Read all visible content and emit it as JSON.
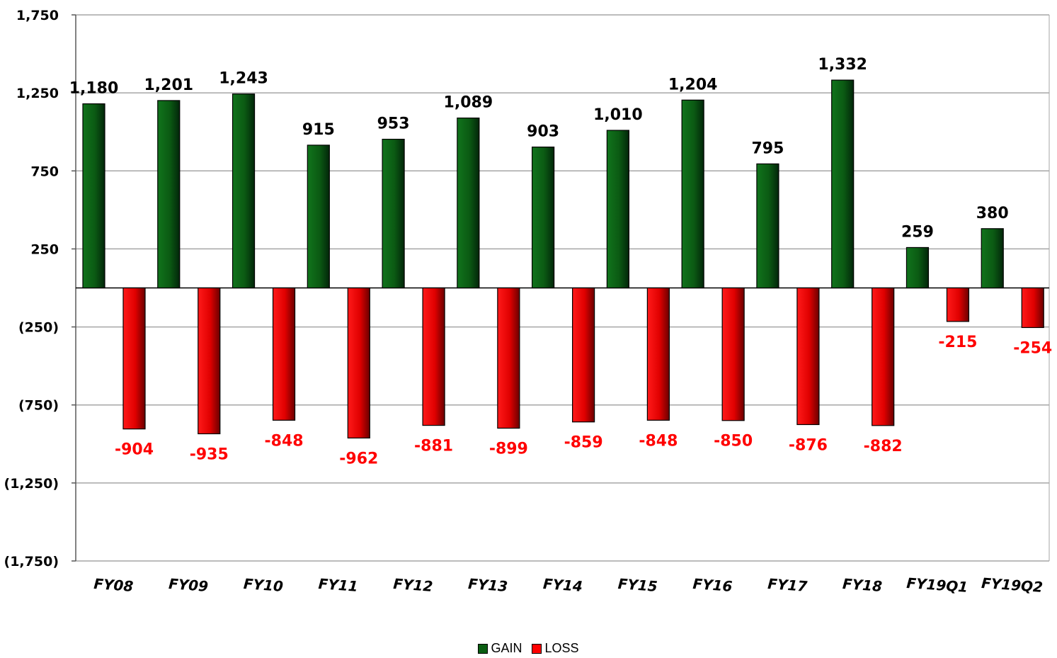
{
  "chart_data": {
    "type": "bar",
    "title": "",
    "xlabel": "",
    "ylabel": "",
    "categories": [
      "FY08",
      "FY09",
      "FY10",
      "FY11",
      "FY12",
      "FY13",
      "FY14",
      "FY15",
      "FY16",
      "FY17",
      "FY18",
      "FY19Q1",
      "FY19Q2"
    ],
    "series": [
      {
        "name": "GAIN",
        "color": "#0b5e12",
        "values": [
          1180,
          1201,
          1243,
          915,
          953,
          1089,
          903,
          1010,
          1204,
          795,
          1332,
          259,
          380
        ]
      },
      {
        "name": "LOSS",
        "color": "#ff0000",
        "values": [
          -904,
          -935,
          -848,
          -962,
          -881,
          -899,
          -859,
          -848,
          -850,
          -876,
          -882,
          -215,
          -254
        ]
      }
    ],
    "data_labels_pos": [
      "1,180",
      "1,201",
      "1,243",
      "915",
      "953",
      "1,089",
      "903",
      "1,010",
      "1,204",
      "795",
      "1,332",
      "259",
      "380"
    ],
    "data_labels_neg": [
      "-904",
      "-935",
      "-848",
      "-962",
      "-881",
      "-899",
      "-859",
      "-848",
      "-850",
      "-876",
      "-882",
      "-215",
      "-254"
    ],
    "yticks": [
      1750,
      1250,
      750,
      250,
      -250,
      -750,
      -1250,
      -1750
    ],
    "ytick_labels": [
      "1,750",
      "1,250",
      "750",
      "250",
      "(250)",
      "(750)",
      "(1,250)",
      "(1,750)"
    ],
    "ylim": [
      -1750,
      1750
    ],
    "grid": true,
    "legend_position": "bottom-center"
  }
}
